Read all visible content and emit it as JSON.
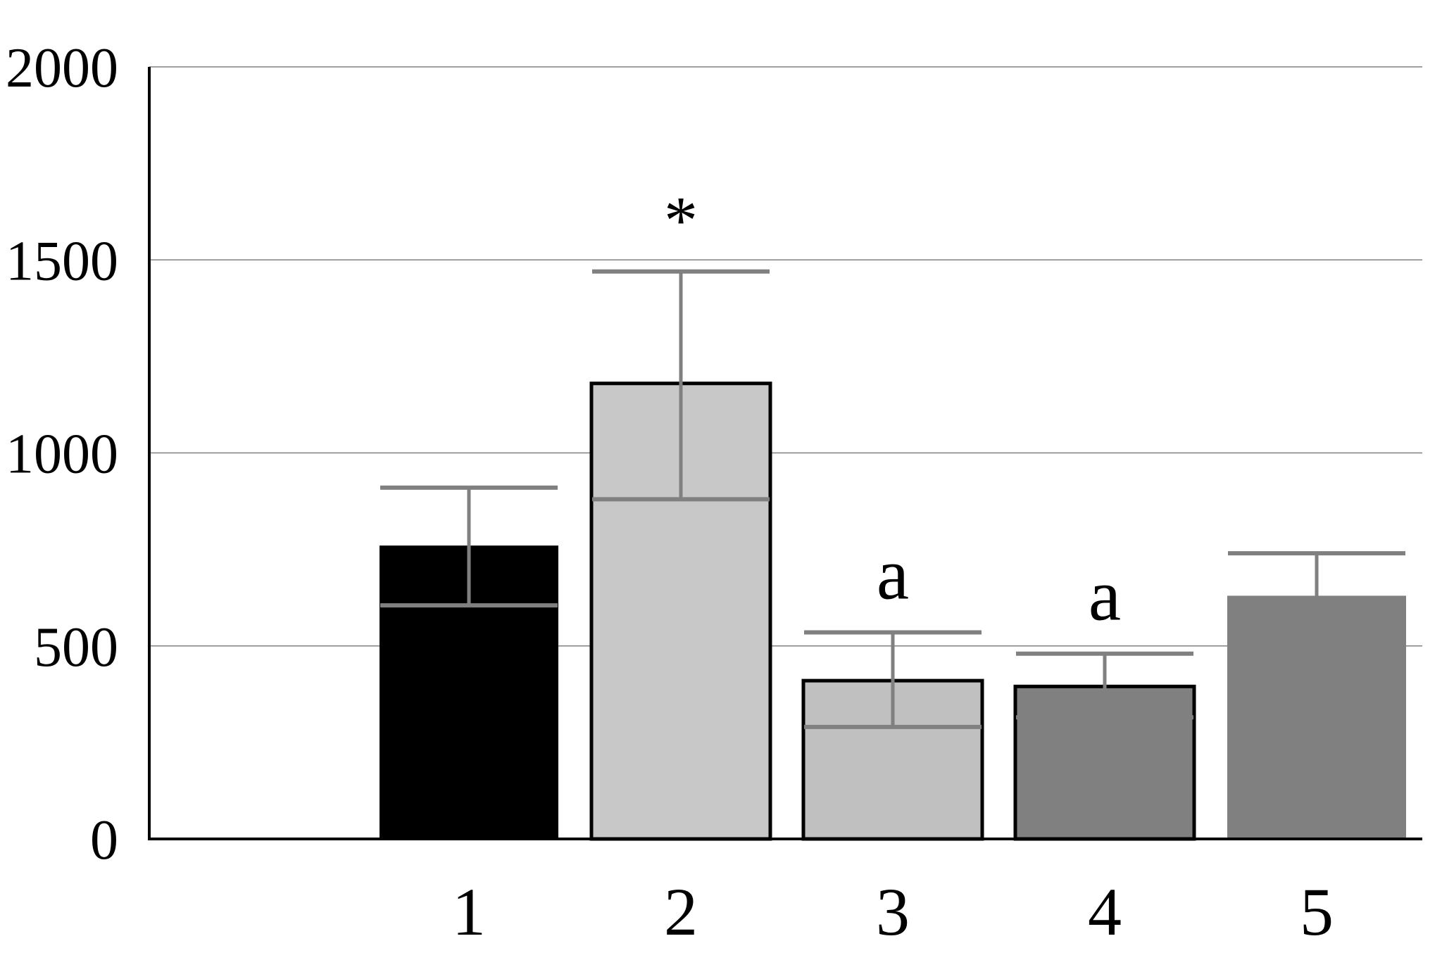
{
  "chart_data": {
    "type": "bar",
    "title": "",
    "xlabel": "",
    "ylabel": "",
    "ylim": [
      0,
      2000
    ],
    "yticks": [
      "0",
      "500",
      "1000",
      "1500",
      "2000"
    ],
    "ytick_values": [
      0,
      500,
      1000,
      1500,
      2000
    ],
    "categories": [
      "1",
      "2",
      "3",
      "4",
      "5"
    ],
    "values": [
      760,
      1180,
      410,
      395,
      630
    ],
    "error_low": [
      605,
      880,
      290,
      315,
      630
    ],
    "error_high": [
      910,
      1470,
      535,
      480,
      740
    ],
    "bar_colors": [
      "#000000",
      "#c8c8c8",
      "#c0c0c0",
      "#808080",
      "#808080"
    ],
    "bar_outlined": [
      false,
      true,
      true,
      true,
      false
    ],
    "error_bar_color": "#808080",
    "gridlines": true,
    "annotations": [
      {
        "category": "2",
        "text": "*"
      },
      {
        "category": "3",
        "text": "a"
      },
      {
        "category": "4",
        "text": "a"
      }
    ]
  }
}
